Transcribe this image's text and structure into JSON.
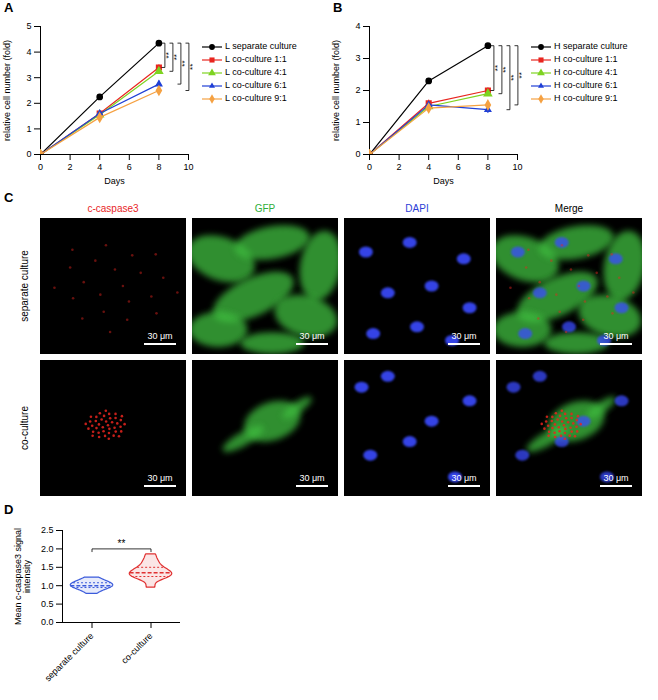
{
  "chart_data": [
    {
      "letter": "A",
      "type": "line",
      "x_label": "Days",
      "y_label": "relative cell number (fold)",
      "x": [
        0,
        4,
        8
      ],
      "xlim": [
        0,
        10
      ],
      "xticks": [
        0,
        2,
        4,
        6,
        8,
        10
      ],
      "ylim": [
        0,
        5
      ],
      "yticks": [
        0,
        1,
        2,
        3,
        4,
        5
      ],
      "legend": "right",
      "series": [
        {
          "name": "L separate culture",
          "color": "#000000",
          "marker": "circle",
          "values": [
            0,
            2.25,
            4.35
          ],
          "errors": [
            0,
            0.05,
            0.1
          ]
        },
        {
          "name": "L co-culture 1:1",
          "color": "#e8251f",
          "marker": "square",
          "values": [
            0,
            1.6,
            3.4
          ],
          "errors": [
            0,
            0.06,
            0.1
          ]
        },
        {
          "name": "L co-culture 4:1",
          "color": "#7ed321",
          "marker": "triangle",
          "values": [
            0,
            1.55,
            3.25
          ],
          "errors": [
            0,
            0.06,
            0.08
          ]
        },
        {
          "name": "L co-culture 6:1",
          "color": "#1f3fd6",
          "marker": "triangle2",
          "values": [
            0,
            1.6,
            2.75
          ],
          "errors": [
            0,
            0.06,
            0.12
          ]
        },
        {
          "name": "L co-culture 9:1",
          "color": "#f5a142",
          "marker": "diamond",
          "values": [
            0,
            1.45,
            2.5
          ],
          "errors": [
            0,
            0.08,
            0.1
          ]
        }
      ],
      "annotations": [
        {
          "text": "**",
          "from": "L separate culture",
          "to": "L co-culture 1:1"
        },
        {
          "text": "**",
          "from": "L separate culture",
          "to": "L co-culture 4:1"
        },
        {
          "text": "**",
          "from": "L separate culture",
          "to": "L co-culture 6:1"
        },
        {
          "text": "**",
          "from": "L separate culture",
          "to": "L co-culture 9:1"
        }
      ]
    },
    {
      "letter": "B",
      "type": "line",
      "x_label": "Days",
      "y_label": "relative cell number (fold)",
      "x": [
        0,
        4,
        8
      ],
      "xlim": [
        0,
        10
      ],
      "xticks": [
        0,
        2,
        4,
        6,
        8,
        10
      ],
      "ylim": [
        0,
        4
      ],
      "yticks": [
        0,
        1,
        2,
        3,
        4
      ],
      "legend": "right",
      "series": [
        {
          "name": "H separate culture",
          "color": "#000000",
          "marker": "circle",
          "values": [
            0,
            2.3,
            3.4
          ],
          "errors": [
            0,
            0.04,
            0.05
          ]
        },
        {
          "name": "H co-culture 1:1",
          "color": "#e8251f",
          "marker": "square",
          "values": [
            0,
            1.6,
            2.0
          ],
          "errors": [
            0,
            0.1,
            0.08
          ]
        },
        {
          "name": "H co-culture 4:1",
          "color": "#7ed321",
          "marker": "triangle",
          "values": [
            0,
            1.5,
            1.9
          ],
          "errors": [
            0,
            0.08,
            0.08
          ]
        },
        {
          "name": "H co-culture 6:1",
          "color": "#1f3fd6",
          "marker": "triangle2",
          "values": [
            0,
            1.55,
            1.4
          ],
          "errors": [
            0,
            0.1,
            0.12
          ]
        },
        {
          "name": "H co-culture 9:1",
          "color": "#f5a142",
          "marker": "diamond",
          "values": [
            0,
            1.45,
            1.55
          ],
          "errors": [
            0,
            0.1,
            0.1
          ]
        }
      ],
      "annotations": [
        {
          "text": "**",
          "from": "H separate culture",
          "to": "H co-culture 1:1"
        },
        {
          "text": "**",
          "from": "H separate culture",
          "to": "H co-culture 4:1"
        },
        {
          "text": "**",
          "from": "H separate culture",
          "to": "H co-culture 6:1"
        },
        {
          "text": "**",
          "from": "H separate culture",
          "to": "H co-culture 9:1"
        }
      ]
    },
    {
      "letter": "D",
      "type": "violin",
      "y_label": "Mean c-caspase3 signal intensity",
      "categories": [
        "separate culture",
        "co-culture"
      ],
      "colors": [
        "#3b5bdb",
        "#e03131"
      ],
      "ylim": [
        0,
        2.5
      ],
      "yticks": [
        {
          "value": 0,
          "label": "0.0"
        },
        0.5,
        {
          "value": 1,
          "label": "1.0"
        },
        1.5,
        {
          "value": 2,
          "label": "2.0"
        },
        2.5
      ],
      "samples": [
        [
          0.78,
          0.88,
          0.92,
          0.95,
          0.98,
          1.0,
          1.0,
          1.02,
          1.05,
          1.08,
          1.1,
          1.15,
          1.22
        ],
        [
          0.95,
          1.15,
          1.22,
          1.25,
          1.3,
          1.32,
          1.35,
          1.4,
          1.45,
          1.5,
          1.6,
          1.7,
          1.85
        ]
      ],
      "annotations": [
        {
          "text": "**",
          "from": "separate culture",
          "to": "co-culture"
        }
      ]
    }
  ],
  "image_grid": {
    "letter": "C",
    "columns": [
      {
        "label": "c-caspase3",
        "color": "#e8251f"
      },
      {
        "label": "GFP",
        "color": "#2fae3a"
      },
      {
        "label": "DAPI",
        "color": "#2b3ed6"
      },
      {
        "label": "Merge",
        "color": "#000000"
      }
    ],
    "rows": [
      "separate culture",
      "co-culture"
    ],
    "scale_bar": "30 μm"
  }
}
